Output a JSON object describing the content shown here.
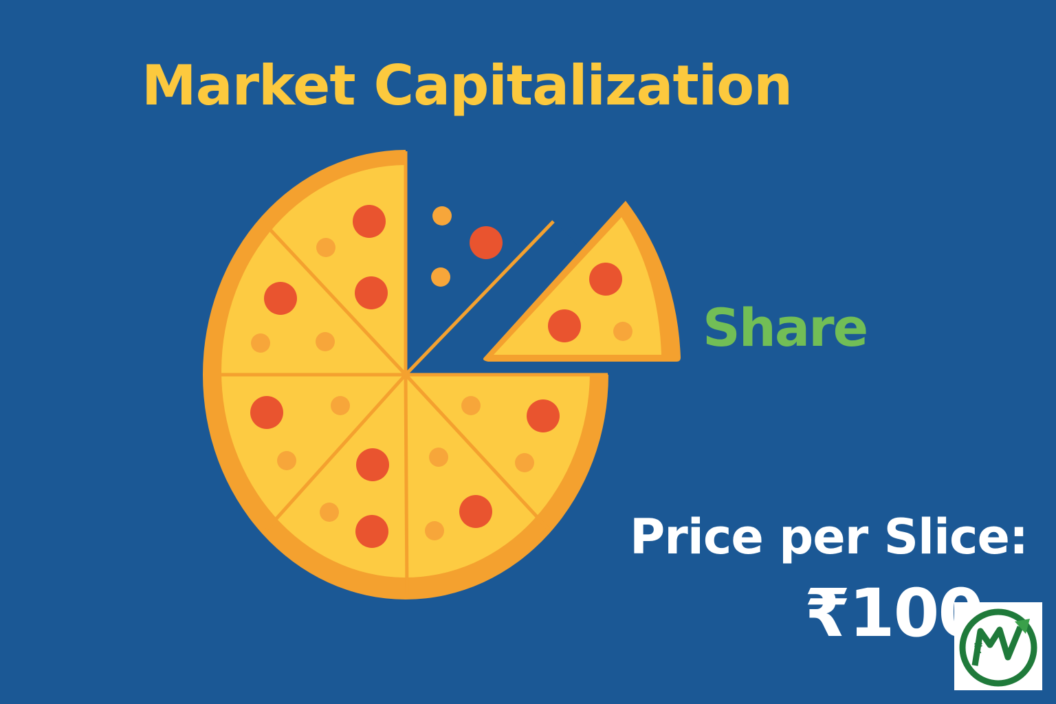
{
  "title": "Market Capitalization",
  "share_label": "Share",
  "price_label": "Price per Slice:",
  "price_value": "₹100",
  "colors": {
    "background": "#1b5895",
    "title": "#fcc93e",
    "share": "#72be56",
    "price": "#ffffff",
    "crust": "#f4a12f",
    "cheese": "#fdcb42",
    "pepperoni": "#e9542f",
    "topping_small": "#f7a63a",
    "logo_green": "#1f7a3a"
  },
  "icons": {
    "pizza": "pizza-icon",
    "slice": "pizza-slice-icon",
    "logo": "brand-logo-icon"
  },
  "pizza": {
    "total_slices": 8,
    "removed_slices": 1
  }
}
